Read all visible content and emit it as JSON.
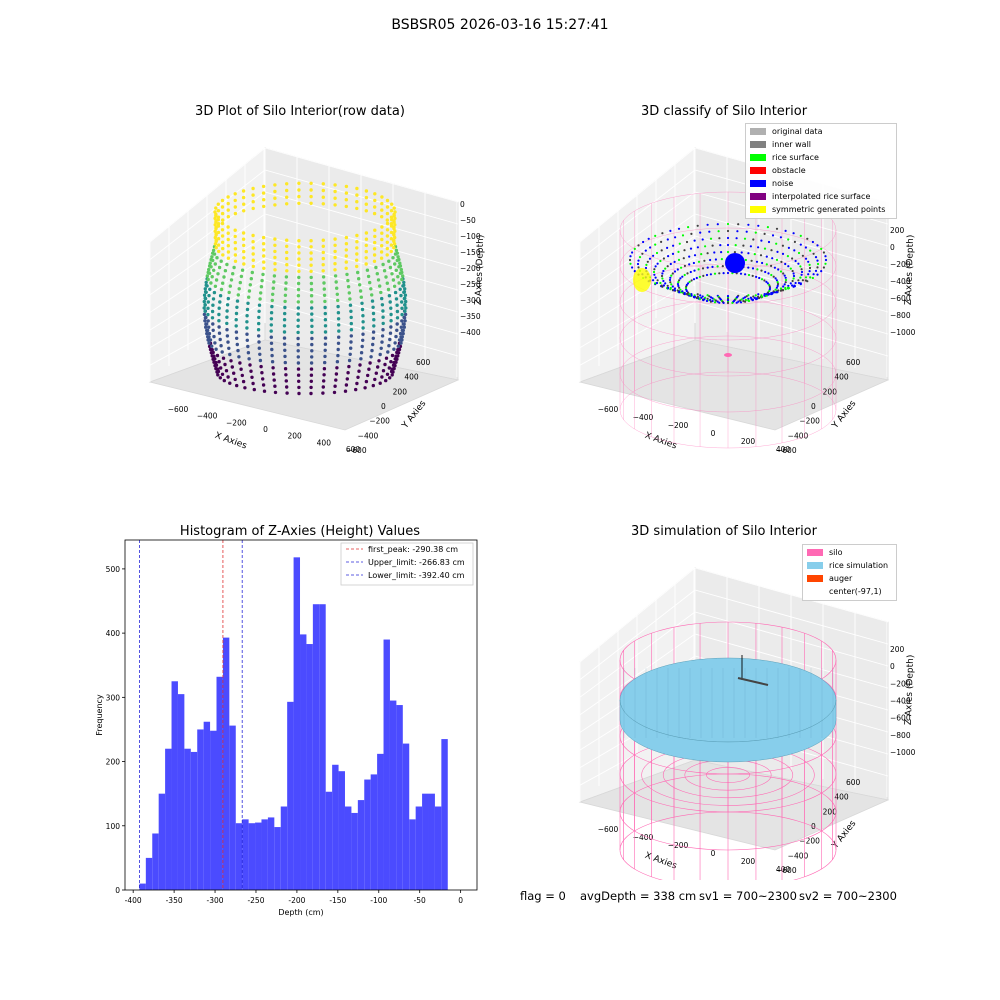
{
  "figure": {
    "suptitle": "BSBSR05 2026-03-16 15:27:41",
    "footer": {
      "flag": "flag = 0",
      "avg_depth": "avgDepth = 338 cm",
      "sv1": "sv1 = 700~2300",
      "sv2": "sv2 = 700~2300"
    }
  },
  "colors": {
    "hist_bar": "#4b4bff",
    "first_peak": "#e03030",
    "limit_lines": "#2a2ad8",
    "silo_wire": "#ff69b4",
    "rice_sim": "#87ceeb",
    "auger": "#ff4500",
    "viridis": [
      "#440154",
      "#3b528b",
      "#21918c",
      "#5ec962",
      "#fde725"
    ]
  },
  "panels": {
    "raw": {
      "title": "3D Plot of Silo Interior(row data)",
      "xlabel": "X Axies",
      "ylabel": "Y Axies",
      "zlabel": "Z Axies (Depth)",
      "xticks": [
        "−600",
        "−400",
        "−200",
        "0",
        "200",
        "400",
        "600"
      ],
      "yticks": [
        "600",
        "400",
        "200",
        "0",
        "−200",
        "−400",
        "−600"
      ],
      "zticks": [
        "0",
        "−50",
        "−100",
        "−150",
        "−200",
        "−250",
        "−300",
        "−350",
        "−400"
      ]
    },
    "classify": {
      "title": "3D classify of Silo Interior",
      "xlabel": "X Axies",
      "ylabel": "Y Axies",
      "zlabel": "Z Axies (Depth)",
      "xticks": [
        "−600",
        "−400",
        "−200",
        "0",
        "200",
        "400"
      ],
      "yticks": [
        "600",
        "400",
        "200",
        "0",
        "−200",
        "−400",
        "−600"
      ],
      "zticks": [
        "200",
        "0",
        "−200",
        "−400",
        "−600",
        "−800",
        "−1000"
      ],
      "legend": [
        {
          "label": "original data",
          "color": "#b0b0b0"
        },
        {
          "label": "inner wall",
          "color": "#808080"
        },
        {
          "label": "rice surface",
          "color": "#00ff00"
        },
        {
          "label": "obstacle",
          "color": "#ff0000"
        },
        {
          "label": "noise",
          "color": "#0000ff"
        },
        {
          "label": "interpolated rice surface",
          "color": "#800080"
        },
        {
          "label": "symmetric generated points",
          "color": "#ffff00"
        }
      ]
    },
    "simulation": {
      "title": "3D simulation of Silo Interior",
      "xlabel": "X Axies",
      "ylabel": "Y Axies",
      "zlabel": "Z Axies (Depth)",
      "xticks": [
        "−600",
        "−400",
        "−200",
        "0",
        "200",
        "400"
      ],
      "yticks": [
        "600",
        "400",
        "200",
        "0",
        "−200",
        "−400",
        "−600"
      ],
      "zticks": [
        "200",
        "0",
        "−200",
        "−400",
        "−600",
        "−800",
        "−1000"
      ],
      "legend": [
        {
          "label": "silo",
          "color": "#ff69b4"
        },
        {
          "label": "rice simulation",
          "color": "#87ceeb"
        },
        {
          "label": "auger",
          "color": "#ff4500"
        },
        {
          "label": "center(-97,1)",
          "color": ""
        }
      ]
    }
  },
  "chart_data": [
    {
      "type": "bar",
      "title": "Histogram of Z-Axies (Height) Values",
      "xlabel": "Depth (cm)",
      "ylabel": "Frequency",
      "xlim": [
        -410,
        20
      ],
      "ylim": [
        0,
        545
      ],
      "xticks": [
        -400,
        -350,
        -300,
        -250,
        -200,
        -150,
        -100,
        -50,
        0
      ],
      "yticks": [
        0,
        100,
        200,
        300,
        400,
        500
      ],
      "bin_start": -392.4,
      "bin_width": 7.848,
      "values": [
        10,
        50,
        88,
        150,
        220,
        325,
        305,
        220,
        215,
        250,
        262,
        248,
        332,
        393,
        256,
        104,
        110,
        104,
        105,
        110,
        113,
        98,
        130,
        293,
        518,
        398,
        383,
        445,
        445,
        153,
        195,
        185,
        130,
        120,
        140,
        172,
        180,
        212,
        390,
        295,
        288,
        228,
        110,
        130,
        150,
        150,
        130,
        235
      ],
      "vlines": [
        {
          "label": "first_peak: -290.38 cm",
          "x": -290.38,
          "color": "#e03030"
        },
        {
          "label": "Upper_limit: -266.83 cm",
          "x": -266.83,
          "color": "#2a2ad8"
        },
        {
          "label": "Lower_limit: -392.40 cm",
          "x": -392.4,
          "color": "#2a2ad8"
        }
      ],
      "legend_loc": "upper right"
    }
  ]
}
